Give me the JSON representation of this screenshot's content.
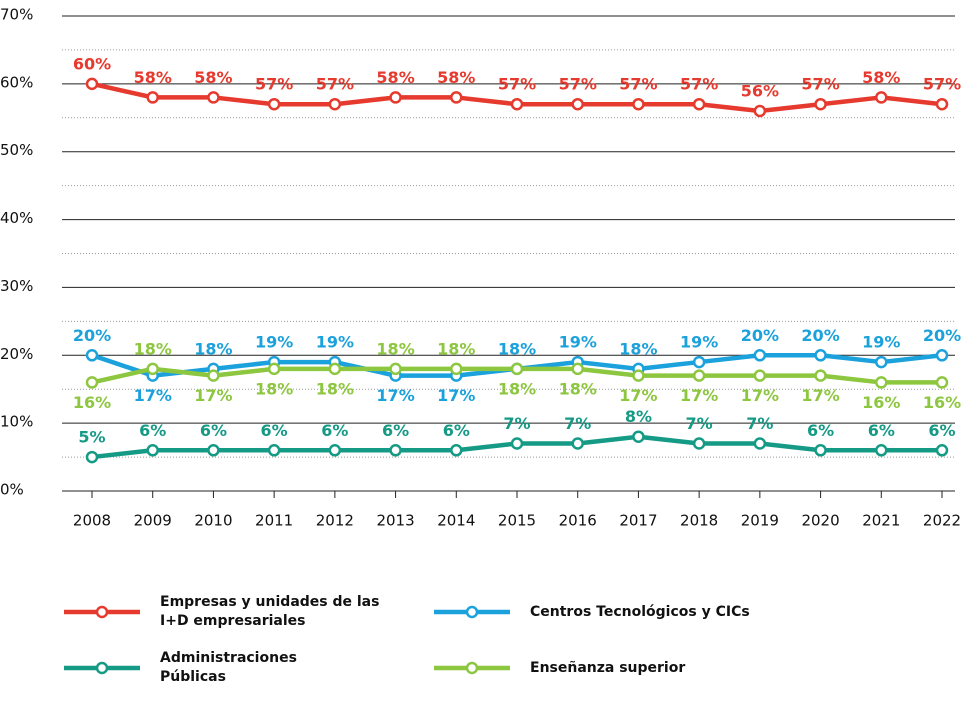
{
  "chart_data": {
    "type": "line",
    "categories": [
      "2008",
      "2009",
      "2010",
      "2011",
      "2012",
      "2013",
      "2014",
      "2015",
      "2016",
      "2017",
      "2018",
      "2019",
      "2020",
      "2021",
      "2022"
    ],
    "series": [
      {
        "name": "Empresas y unidades de las I+D empresariales",
        "color": "#e63a2e",
        "values": [
          60,
          58,
          58,
          57,
          57,
          58,
          58,
          57,
          57,
          57,
          57,
          56,
          57,
          58,
          57
        ],
        "value_labels": [
          "60%",
          "58%",
          "58%",
          "57%",
          "57%",
          "58%",
          "58%",
          "57%",
          "57%",
          "57%",
          "57%",
          "56%",
          "57%",
          "58%",
          "57%"
        ]
      },
      {
        "name": "Centros Tecnológicos y CICs",
        "color": "#1ba1dc",
        "values": [
          20,
          17,
          18,
          19,
          19,
          17,
          17,
          18,
          19,
          18,
          19,
          20,
          20,
          19,
          20
        ],
        "value_labels": [
          "20%",
          "17%",
          "18%",
          "19%",
          "19%",
          "17%",
          "17%",
          "18%",
          "19%",
          "18%",
          "19%",
          "20%",
          "20%",
          "19%",
          "20%"
        ]
      },
      {
        "name": "Administraciones Públicas",
        "color": "#159a86",
        "values": [
          5,
          6,
          6,
          6,
          6,
          6,
          6,
          7,
          7,
          8,
          7,
          7,
          6,
          6,
          6
        ],
        "value_labels": [
          "5%",
          "6%",
          "6%",
          "6%",
          "6%",
          "6%",
          "6%",
          "7%",
          "7%",
          "8%",
          "7%",
          "7%",
          "6%",
          "6%",
          "6%"
        ]
      },
      {
        "name": "Enseñanza superior",
        "color": "#8dc63f",
        "values": [
          16,
          18,
          17,
          18,
          18,
          18,
          18,
          18,
          18,
          17,
          17,
          17,
          17,
          16,
          16
        ],
        "value_labels": [
          "16%",
          "18%",
          "17%",
          "18%",
          "18%",
          "18%",
          "18%",
          "18%",
          "18%",
          "17%",
          "17%",
          "17%",
          "17%",
          "16%",
          "16%"
        ]
      }
    ],
    "ylim": [
      0,
      70
    ],
    "yticks": [
      {
        "value": 0,
        "label": "0%"
      },
      {
        "value": 10,
        "label": "10%"
      },
      {
        "value": 20,
        "label": "20%"
      },
      {
        "value": 30,
        "label": "30%"
      },
      {
        "value": 40,
        "label": "40%"
      },
      {
        "value": 50,
        "label": "50%"
      },
      {
        "value": 60,
        "label": "60%"
      },
      {
        "value": 70,
        "label": "70%"
      }
    ],
    "grid": true
  }
}
